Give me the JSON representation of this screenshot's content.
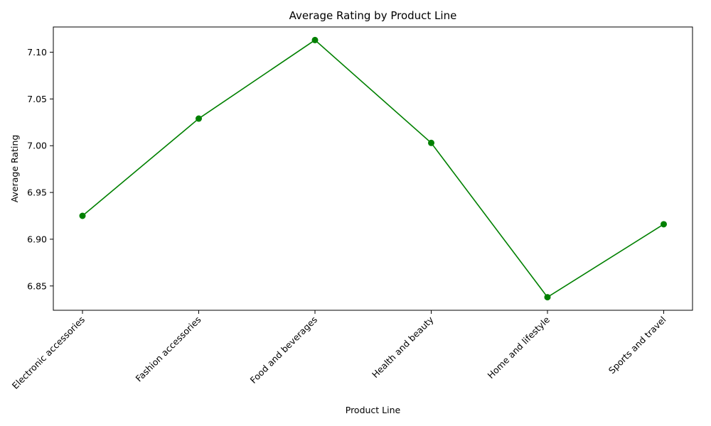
{
  "chart_data": {
    "type": "line",
    "title": "Average Rating by Product Line",
    "xlabel": "Product Line",
    "ylabel": "Average Rating",
    "categories": [
      "Electronic accessories",
      "Fashion accessories",
      "Food and beverages",
      "Health and beauty",
      "Home and lifestyle",
      "Sports and travel"
    ],
    "values": [
      6.925,
      7.029,
      7.113,
      7.003,
      6.838,
      6.916
    ],
    "yticks": [
      6.85,
      6.9,
      6.95,
      7.0,
      7.05,
      7.1
    ],
    "ytick_labels": [
      "6.85",
      "6.90",
      "6.95",
      "7.00",
      "7.05",
      "7.10"
    ],
    "ylim": [
      6.824,
      7.127
    ],
    "line_color": "#008000",
    "marker": "circle",
    "grid": false,
    "xtick_rotation_deg": 45
  }
}
